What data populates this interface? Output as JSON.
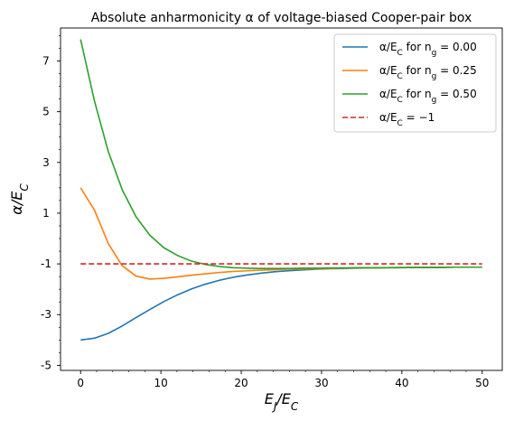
{
  "chart_data": {
    "type": "line",
    "title": "Absolute anharmonicity α of voltage-biased Cooper-pair box",
    "xlabel": "E_J/E_C",
    "ylabel": "α/E_C",
    "xlim": [
      -2.5,
      52.5
    ],
    "ylim": [
      -5.2,
      8.3
    ],
    "xticks": [
      0,
      10,
      20,
      30,
      40,
      50
    ],
    "xtick_labels": [
      "0",
      "10",
      "20",
      "30",
      "40",
      "50"
    ],
    "yticks": [
      -5,
      -3,
      -1,
      1,
      3,
      5,
      7
    ],
    "ytick_labels": [
      "-5",
      "-3",
      "-1",
      "1",
      "3",
      "5",
      "7"
    ],
    "grid": false,
    "legend_position": "top-right",
    "x": [
      0,
      1.724,
      3.448,
      5.172,
      6.897,
      8.621,
      10.345,
      12.069,
      13.793,
      15.517,
      17.241,
      18.966,
      20.69,
      22.414,
      24.138,
      25.862,
      27.586,
      29.31,
      31.034,
      32.759,
      34.483,
      36.207,
      37.931,
      39.655,
      41.379,
      43.103,
      44.828,
      46.552,
      48.276,
      50
    ],
    "series": [
      {
        "name": "α/E_C for n_g = 0.00",
        "color": "#1f77b4",
        "dash": "solid",
        "values": [
          -4.0,
          -3.93,
          -3.74,
          -3.45,
          -3.12,
          -2.8,
          -2.49,
          -2.22,
          -1.99,
          -1.8,
          -1.65,
          -1.53,
          -1.44,
          -1.37,
          -1.31,
          -1.27,
          -1.24,
          -1.21,
          -1.19,
          -1.18,
          -1.17,
          -1.16,
          -1.15,
          -1.15,
          -1.14,
          -1.14,
          -1.13,
          -1.13,
          -1.13,
          -1.13
        ]
      },
      {
        "name": "α/E_C for n_g = 0.25",
        "color": "#ff7f0e",
        "dash": "solid",
        "values": [
          2.0,
          1.12,
          -0.2,
          -1.07,
          -1.48,
          -1.6,
          -1.57,
          -1.51,
          -1.45,
          -1.39,
          -1.34,
          -1.3,
          -1.27,
          -1.25,
          -1.23,
          -1.21,
          -1.2,
          -1.19,
          -1.18,
          -1.17,
          -1.16,
          -1.16,
          -1.15,
          -1.15,
          -1.14,
          -1.14,
          -1.14,
          -1.13,
          -1.13,
          -1.13
        ]
      },
      {
        "name": "α/E_C for n_g = 0.50",
        "color": "#2ca02c",
        "dash": "solid",
        "values": [
          7.85,
          5.42,
          3.43,
          1.93,
          0.86,
          0.13,
          -0.36,
          -0.67,
          -0.89,
          -1.02,
          -1.1,
          -1.15,
          -1.17,
          -1.18,
          -1.18,
          -1.18,
          -1.17,
          -1.17,
          -1.16,
          -1.16,
          -1.15,
          -1.15,
          -1.15,
          -1.14,
          -1.14,
          -1.14,
          -1.14,
          -1.13,
          -1.13,
          -1.13
        ]
      },
      {
        "name": "α/E_C = −1",
        "color": "#d62728",
        "dash": "dashed",
        "values": [
          -1,
          -1,
          -1,
          -1,
          -1,
          -1,
          -1,
          -1,
          -1,
          -1,
          -1,
          -1,
          -1,
          -1,
          -1,
          -1,
          -1,
          -1,
          -1,
          -1,
          -1,
          -1,
          -1,
          -1,
          -1,
          -1,
          -1,
          -1,
          -1,
          -1
        ]
      }
    ]
  }
}
